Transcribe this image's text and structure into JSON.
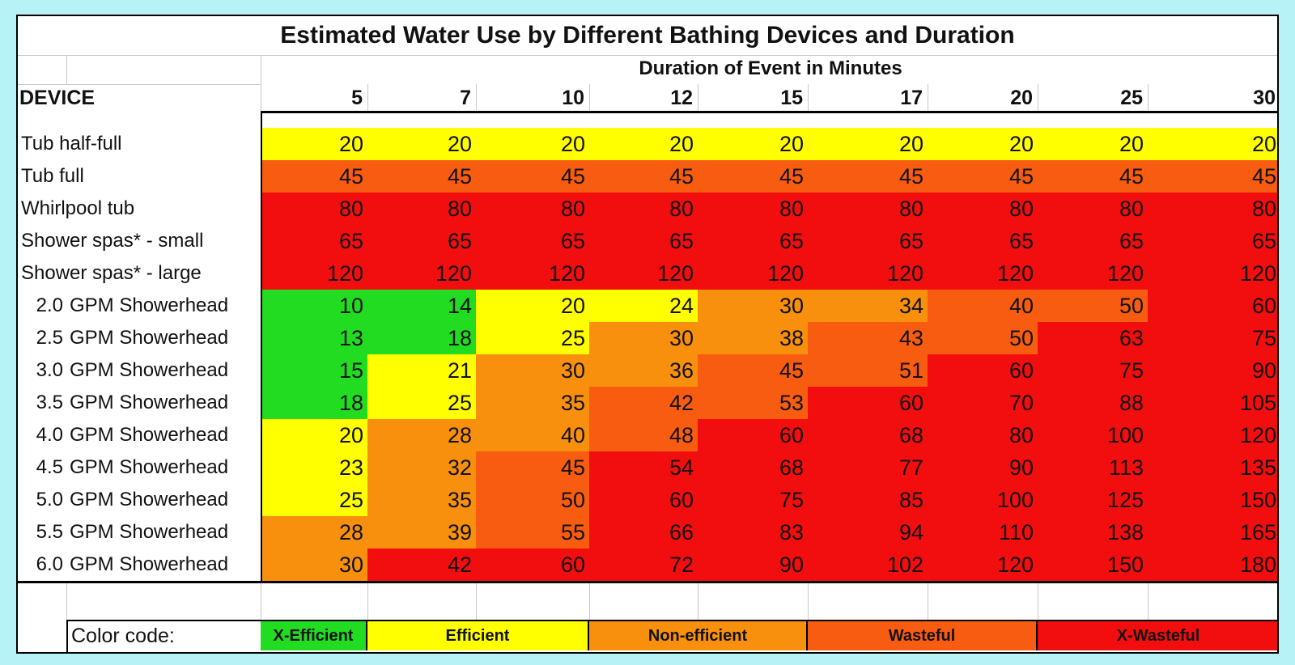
{
  "title": "Estimated Water Use by Different Bathing Devices and Duration",
  "subtitle": "Duration of Event in Minutes",
  "device_header": "DEVICE",
  "colors": {
    "x_efficient": "#22dc22",
    "efficient": "#ffff00",
    "non_efficient": "#f8900e",
    "wasteful": "#f85c10",
    "x_wasteful": "#f20e0e"
  },
  "legend": {
    "label": "Color code:",
    "items": [
      {
        "name": "X-Efficient",
        "code": "x_efficient"
      },
      {
        "name": "Efficient",
        "code": "efficient"
      },
      {
        "name": "Non-efficient",
        "code": "non_efficient"
      },
      {
        "name": "Wasteful",
        "code": "wasteful"
      },
      {
        "name": "X-Wasteful",
        "code": "x_wasteful"
      }
    ]
  },
  "chart_data": {
    "type": "table",
    "title": "Estimated Water Use by Different Bathing Devices and Duration",
    "xlabel": "Duration of Event in Minutes",
    "columns": [
      "5",
      "7",
      "10",
      "12",
      "15",
      "17",
      "20",
      "25",
      "30"
    ],
    "rows": [
      {
        "prefix": "",
        "label": "Tub half-full",
        "values": [
          20,
          20,
          20,
          20,
          20,
          20,
          20,
          20,
          20
        ],
        "codes": [
          "efficient",
          "efficient",
          "efficient",
          "efficient",
          "efficient",
          "efficient",
          "efficient",
          "efficient",
          "efficient"
        ]
      },
      {
        "prefix": "",
        "label": "Tub full",
        "values": [
          45,
          45,
          45,
          45,
          45,
          45,
          45,
          45,
          45
        ],
        "codes": [
          "wasteful",
          "wasteful",
          "wasteful",
          "wasteful",
          "wasteful",
          "wasteful",
          "wasteful",
          "wasteful",
          "wasteful"
        ]
      },
      {
        "prefix": "",
        "label": "Whirlpool tub",
        "values": [
          80,
          80,
          80,
          80,
          80,
          80,
          80,
          80,
          80
        ],
        "codes": [
          "x_wasteful",
          "x_wasteful",
          "x_wasteful",
          "x_wasteful",
          "x_wasteful",
          "x_wasteful",
          "x_wasteful",
          "x_wasteful",
          "x_wasteful"
        ]
      },
      {
        "prefix": "",
        "label": "Shower spas* - small",
        "values": [
          65,
          65,
          65,
          65,
          65,
          65,
          65,
          65,
          65
        ],
        "codes": [
          "x_wasteful",
          "x_wasteful",
          "x_wasteful",
          "x_wasteful",
          "x_wasteful",
          "x_wasteful",
          "x_wasteful",
          "x_wasteful",
          "x_wasteful"
        ]
      },
      {
        "prefix": "",
        "label": "Shower spas* - large",
        "values": [
          120,
          120,
          120,
          120,
          120,
          120,
          120,
          120,
          120
        ],
        "codes": [
          "x_wasteful",
          "x_wasteful",
          "x_wasteful",
          "x_wasteful",
          "x_wasteful",
          "x_wasteful",
          "x_wasteful",
          "x_wasteful",
          "x_wasteful"
        ]
      },
      {
        "prefix": "2.0",
        "label": "GPM Showerhead",
        "values": [
          10,
          14,
          20,
          24,
          30,
          34,
          40,
          50,
          60
        ],
        "codes": [
          "x_efficient",
          "x_efficient",
          "efficient",
          "efficient",
          "non_efficient",
          "non_efficient",
          "wasteful",
          "wasteful",
          "x_wasteful"
        ]
      },
      {
        "prefix": "2.5",
        "label": "GPM Showerhead",
        "values": [
          13,
          18,
          25,
          30,
          38,
          43,
          50,
          63,
          75
        ],
        "codes": [
          "x_efficient",
          "x_efficient",
          "efficient",
          "non_efficient",
          "non_efficient",
          "wasteful",
          "wasteful",
          "x_wasteful",
          "x_wasteful"
        ]
      },
      {
        "prefix": "3.0",
        "label": "GPM Showerhead",
        "values": [
          15,
          21,
          30,
          36,
          45,
          51,
          60,
          75,
          90
        ],
        "codes": [
          "x_efficient",
          "efficient",
          "non_efficient",
          "non_efficient",
          "wasteful",
          "wasteful",
          "x_wasteful",
          "x_wasteful",
          "x_wasteful"
        ]
      },
      {
        "prefix": "3.5",
        "label": "GPM Showerhead",
        "values": [
          18,
          25,
          35,
          42,
          53,
          60,
          70,
          88,
          105
        ],
        "codes": [
          "x_efficient",
          "efficient",
          "non_efficient",
          "wasteful",
          "wasteful",
          "x_wasteful",
          "x_wasteful",
          "x_wasteful",
          "x_wasteful"
        ]
      },
      {
        "prefix": "4.0",
        "label": "GPM Showerhead",
        "values": [
          20,
          28,
          40,
          48,
          60,
          68,
          80,
          100,
          120
        ],
        "codes": [
          "efficient",
          "non_efficient",
          "non_efficient",
          "wasteful",
          "x_wasteful",
          "x_wasteful",
          "x_wasteful",
          "x_wasteful",
          "x_wasteful"
        ]
      },
      {
        "prefix": "4.5",
        "label": "GPM Showerhead",
        "values": [
          23,
          32,
          45,
          54,
          68,
          77,
          90,
          113,
          135
        ],
        "codes": [
          "efficient",
          "non_efficient",
          "wasteful",
          "x_wasteful",
          "x_wasteful",
          "x_wasteful",
          "x_wasteful",
          "x_wasteful",
          "x_wasteful"
        ]
      },
      {
        "prefix": "5.0",
        "label": "GPM Showerhead",
        "values": [
          25,
          35,
          50,
          60,
          75,
          85,
          100,
          125,
          150
        ],
        "codes": [
          "efficient",
          "non_efficient",
          "wasteful",
          "x_wasteful",
          "x_wasteful",
          "x_wasteful",
          "x_wasteful",
          "x_wasteful",
          "x_wasteful"
        ]
      },
      {
        "prefix": "5.5",
        "label": "GPM Showerhead",
        "values": [
          28,
          39,
          55,
          66,
          83,
          94,
          110,
          138,
          165
        ],
        "codes": [
          "non_efficient",
          "non_efficient",
          "wasteful",
          "x_wasteful",
          "x_wasteful",
          "x_wasteful",
          "x_wasteful",
          "x_wasteful",
          "x_wasteful"
        ]
      },
      {
        "prefix": "6.0",
        "label": "GPM Showerhead",
        "values": [
          30,
          42,
          60,
          72,
          90,
          102,
          120,
          150,
          180
        ],
        "codes": [
          "non_efficient",
          "x_wasteful",
          "x_wasteful",
          "x_wasteful",
          "x_wasteful",
          "x_wasteful",
          "x_wasteful",
          "x_wasteful",
          "x_wasteful"
        ]
      }
    ]
  }
}
